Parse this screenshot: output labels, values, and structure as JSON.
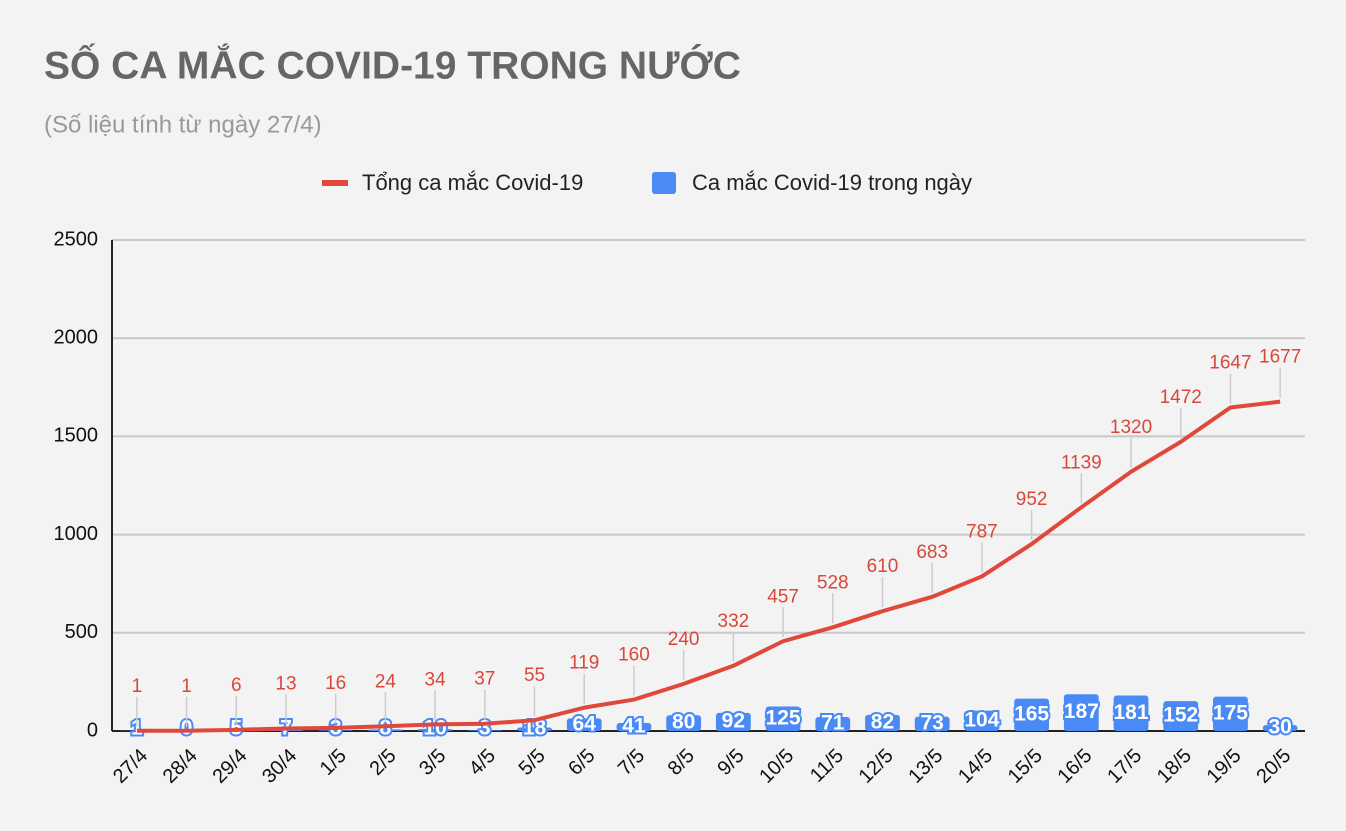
{
  "chart_data": {
    "type": "combo",
    "title": "SỐ CA MẮC COVID-19 TRONG NƯỚC",
    "subtitle": "(Số liệu tính từ ngày 27/4)",
    "categories": [
      "27/4",
      "28/4",
      "29/4",
      "30/4",
      "1/5",
      "2/5",
      "3/5",
      "4/5",
      "5/5",
      "6/5",
      "7/5",
      "8/5",
      "9/5",
      "10/5",
      "11/5",
      "12/5",
      "13/5",
      "14/5",
      "15/5",
      "16/5",
      "17/5",
      "18/5",
      "19/5",
      "20/5"
    ],
    "series": [
      {
        "name": "Tổng ca mắc Covid-19",
        "type": "line",
        "color": "#e0483b",
        "values": [
          1,
          1,
          6,
          13,
          16,
          24,
          34,
          37,
          55,
          119,
          160,
          240,
          332,
          457,
          528,
          610,
          683,
          787,
          952,
          1139,
          1320,
          1472,
          1647,
          1677
        ]
      },
      {
        "name": "Ca mắc Covid-19 trong ngày",
        "type": "bar",
        "color": "#4a8af4",
        "values": [
          1,
          0,
          5,
          7,
          3,
          8,
          10,
          3,
          18,
          64,
          41,
          80,
          92,
          125,
          71,
          82,
          73,
          104,
          165,
          187,
          181,
          152,
          175,
          30
        ]
      }
    ],
    "ylim": [
      0,
      2500
    ],
    "yticks": [
      0,
      500,
      1000,
      1500,
      2000,
      2500
    ],
    "grid": true
  }
}
